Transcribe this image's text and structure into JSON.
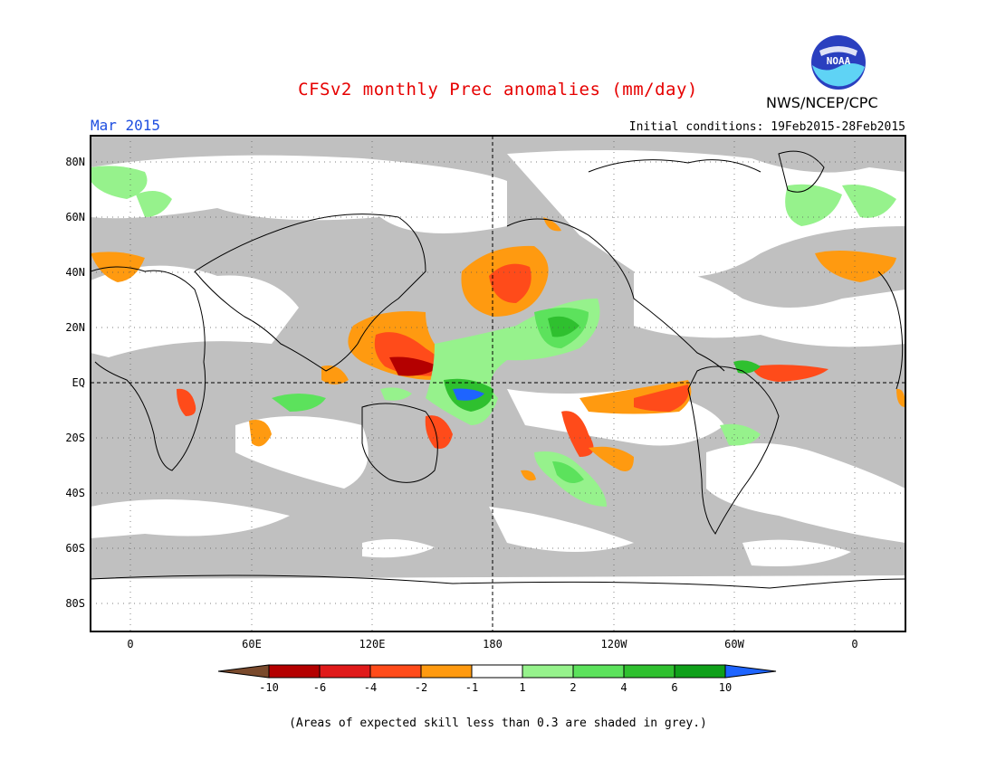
{
  "header": {
    "title": "CFSv2 monthly Prec anomalies (mm/day)",
    "organization": "NWS/NCEP/CPC",
    "logo_text": "NOAA",
    "month_label": "Mar 2015",
    "initial_conditions": "Initial conditions: 19Feb2015-28Feb2015"
  },
  "map": {
    "lat_labels": [
      "80N",
      "60N",
      "40N",
      "20N",
      "EQ",
      "20S",
      "40S",
      "60S",
      "80S"
    ],
    "lon_labels": [
      "0",
      "60E",
      "120E",
      "180",
      "120W",
      "60W",
      "0"
    ],
    "land_color": "#ffffff",
    "low_skill_color": "#c0c0c0"
  },
  "legend": {
    "colors": [
      "#7a4a2c",
      "#b40000",
      "#e01a1a",
      "#ff4b1a",
      "#ff9a10",
      "#ffffff",
      "#96f28c",
      "#5ce25c",
      "#2fc02f",
      "#0fa01a",
      "#1e64ff"
    ],
    "labels": [
      "-10",
      "-6",
      "-4",
      "-2",
      "-1",
      "1",
      "2",
      "4",
      "6",
      "10"
    ]
  },
  "footer": {
    "note": "(Areas of expected skill less than 0.3 are shaded in grey.)"
  }
}
